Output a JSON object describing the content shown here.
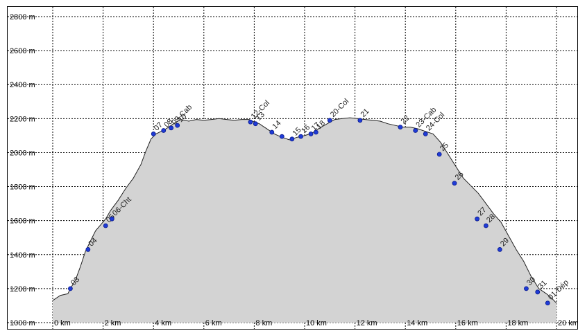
{
  "chart_data": {
    "type": "area",
    "title": "",
    "xlabel": "",
    "ylabel": "",
    "xlim": [
      0,
      20
    ],
    "ylim": [
      1000,
      2800
    ],
    "grid": true,
    "x_ticks": [
      {
        "value": 0,
        "label": "0 km"
      },
      {
        "value": 2,
        "label": "2 km"
      },
      {
        "value": 4,
        "label": "4 km"
      },
      {
        "value": 6,
        "label": "6 km"
      },
      {
        "value": 8,
        "label": "8 km"
      },
      {
        "value": 10,
        "label": "10 km"
      },
      {
        "value": 12,
        "label": "12 km"
      },
      {
        "value": 14,
        "label": "14 km"
      },
      {
        "value": 16,
        "label": "16 km"
      },
      {
        "value": 18,
        "label": "18 km"
      },
      {
        "value": 20,
        "label": "20 km"
      }
    ],
    "y_ticks": [
      {
        "value": 1000,
        "label": "1000 m"
      },
      {
        "value": 1200,
        "label": "1200 m"
      },
      {
        "value": 1400,
        "label": "1400 m"
      },
      {
        "value": 1600,
        "label": "1600 m"
      },
      {
        "value": 1800,
        "label": "1800 m"
      },
      {
        "value": 2000,
        "label": "2000 m"
      },
      {
        "value": 2200,
        "label": "2200 m"
      },
      {
        "value": 2400,
        "label": "2400 m"
      },
      {
        "value": 2600,
        "label": "2600 m"
      },
      {
        "value": 2800,
        "label": "2800 m"
      }
    ],
    "profile": {
      "x": [
        0,
        0.3,
        0.6,
        0.7,
        0.9,
        1.1,
        1.3,
        1.5,
        1.7,
        1.9,
        2.1,
        2.3,
        2.6,
        2.9,
        3.2,
        3.5,
        3.7,
        3.9,
        4.1,
        4.3,
        4.5,
        4.7,
        4.9,
        5.1,
        5.4,
        5.7,
        6.0,
        6.3,
        6.6,
        6.9,
        7.2,
        7.5,
        7.8,
        8.0,
        8.2,
        8.5,
        8.8,
        9.1,
        9.4,
        9.7,
        10.0,
        10.3,
        10.6,
        10.9,
        11.2,
        11.5,
        11.8,
        12.1,
        12.4,
        12.7,
        13.0,
        13.3,
        13.6,
        13.9,
        14.2,
        14.5,
        14.8,
        15.1,
        15.4,
        15.7,
        16.0,
        16.3,
        16.6,
        16.9,
        17.2,
        17.5,
        17.8,
        18.1,
        18.4,
        18.7,
        19.0,
        19.3,
        19.6,
        19.8,
        20.0
      ],
      "y": [
        1130,
        1160,
        1170,
        1200,
        1250,
        1330,
        1420,
        1480,
        1540,
        1575,
        1610,
        1660,
        1720,
        1790,
        1850,
        1930,
        2010,
        2080,
        2110,
        2125,
        2140,
        2160,
        2180,
        2195,
        2185,
        2195,
        2190,
        2195,
        2200,
        2195,
        2190,
        2195,
        2195,
        2180,
        2170,
        2140,
        2110,
        2090,
        2075,
        2090,
        2100,
        2115,
        2145,
        2170,
        2195,
        2200,
        2205,
        2200,
        2195,
        2190,
        2185,
        2170,
        2160,
        2150,
        2150,
        2140,
        2125,
        2110,
        2060,
        1990,
        1920,
        1850,
        1805,
        1760,
        1700,
        1640,
        1590,
        1510,
        1430,
        1360,
        1270,
        1200,
        1170,
        1145,
        1115
      ]
    },
    "waypoints": [
      {
        "x": 0.7,
        "y": 1200,
        "label": "03"
      },
      {
        "x": 1.4,
        "y": 1430,
        "label": "04"
      },
      {
        "x": 2.1,
        "y": 1570,
        "label": "05"
      },
      {
        "x": 2.35,
        "y": 1610,
        "label": "06-Cht"
      },
      {
        "x": 4.0,
        "y": 2110,
        "label": "07"
      },
      {
        "x": 4.4,
        "y": 2130,
        "label": "08"
      },
      {
        "x": 4.7,
        "y": 2145,
        "label": "09-Cab"
      },
      {
        "x": 4.95,
        "y": 2160,
        "label": "10"
      },
      {
        "x": 7.85,
        "y": 2180,
        "label": "12-Col"
      },
      {
        "x": 8.05,
        "y": 2170,
        "label": "13"
      },
      {
        "x": 8.7,
        "y": 2120,
        "label": "14"
      },
      {
        "x": 9.1,
        "y": 2095,
        "label": ""
      },
      {
        "x": 9.5,
        "y": 2080,
        "label": "15"
      },
      {
        "x": 9.85,
        "y": 2095,
        "label": "16"
      },
      {
        "x": 10.25,
        "y": 2110,
        "label": "17"
      },
      {
        "x": 10.45,
        "y": 2120,
        "label": "18"
      },
      {
        "x": 11.0,
        "y": 2190,
        "label": "20-Col"
      },
      {
        "x": 12.2,
        "y": 2190,
        "label": "21"
      },
      {
        "x": 13.8,
        "y": 2150,
        "label": "22"
      },
      {
        "x": 14.4,
        "y": 2130,
        "label": "23-Cab"
      },
      {
        "x": 14.8,
        "y": 2110,
        "label": "24-Col"
      },
      {
        "x": 15.35,
        "y": 1990,
        "label": "25"
      },
      {
        "x": 15.95,
        "y": 1820,
        "label": "26"
      },
      {
        "x": 16.85,
        "y": 1610,
        "label": "27"
      },
      {
        "x": 17.2,
        "y": 1570,
        "label": "28"
      },
      {
        "x": 17.75,
        "y": 1430,
        "label": "29"
      },
      {
        "x": 18.8,
        "y": 1200,
        "label": "30"
      },
      {
        "x": 19.25,
        "y": 1180,
        "label": "31"
      },
      {
        "x": 19.65,
        "y": 1115,
        "label": "01-Dép"
      }
    ]
  }
}
